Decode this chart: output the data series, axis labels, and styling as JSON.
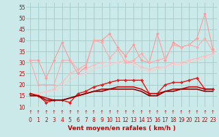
{
  "xlabel": "Vent moyen/en rafales ( km/h )",
  "xlim": [
    -0.5,
    23.5
  ],
  "ylim": [
    10,
    57
  ],
  "yticks": [
    10,
    15,
    20,
    25,
    30,
    35,
    40,
    45,
    50,
    55
  ],
  "xticks": [
    0,
    1,
    2,
    3,
    4,
    5,
    6,
    7,
    8,
    9,
    10,
    11,
    12,
    13,
    14,
    15,
    16,
    17,
    18,
    19,
    20,
    21,
    22,
    23
  ],
  "background_color": "#cbe9e9",
  "grid_color": "#a0c8c8",
  "series": [
    {
      "x": [
        0,
        1,
        2,
        3,
        4,
        5,
        6,
        7,
        8,
        9,
        10,
        11,
        12,
        13,
        14,
        15,
        16,
        17,
        18,
        19,
        20,
        21,
        22,
        23
      ],
      "y": [
        31,
        31,
        23,
        31,
        39,
        31,
        25,
        28,
        40,
        40,
        43,
        37,
        33,
        38,
        31,
        30,
        43,
        31,
        39,
        37,
        38,
        41,
        52,
        36
      ],
      "color": "#ff9999",
      "marker": "D",
      "markersize": 2,
      "linewidth": 0.8,
      "linestyle": "-",
      "zorder": 3
    },
    {
      "x": [
        0,
        1,
        2,
        3,
        4,
        5,
        6,
        7,
        8,
        9,
        10,
        11,
        12,
        13,
        14,
        15,
        16,
        17,
        18,
        19,
        20,
        21,
        22,
        23
      ],
      "y": [
        31,
        20,
        20,
        20,
        31,
        31,
        27,
        29,
        40,
        39,
        32,
        36,
        30,
        31,
        34,
        30,
        31,
        32,
        38,
        37,
        38,
        37,
        41,
        35
      ],
      "color": "#ffaaaa",
      "marker": "D",
      "markersize": 2,
      "linewidth": 0.8,
      "linestyle": "-",
      "zorder": 3
    },
    {
      "x": [
        0,
        1,
        2,
        3,
        4,
        5,
        6,
        7,
        8,
        9,
        10,
        11,
        12,
        13,
        14,
        15,
        16,
        17,
        18,
        19,
        20,
        21,
        22,
        23
      ],
      "y": [
        16,
        16,
        17,
        18,
        21,
        25,
        27,
        27,
        29,
        30,
        30,
        30,
        31,
        30,
        28,
        27,
        28,
        28,
        30,
        30,
        31,
        32,
        33,
        34
      ],
      "color": "#ffbbbb",
      "marker": "D",
      "markersize": 2,
      "linewidth": 0.8,
      "linestyle": "-",
      "zorder": 2
    },
    {
      "x": [
        0,
        1,
        2,
        3,
        4,
        5,
        6,
        7,
        8,
        9,
        10,
        11,
        12,
        13,
        14,
        15,
        16,
        17,
        18,
        19,
        20,
        21,
        22,
        23
      ],
      "y": [
        16,
        16,
        17,
        17,
        19,
        22,
        24,
        25,
        27,
        28,
        29,
        30,
        30,
        29,
        27,
        26,
        27,
        28,
        29,
        29,
        30,
        31,
        32,
        33
      ],
      "color": "#ffcccc",
      "marker": null,
      "markersize": 0,
      "linewidth": 0.8,
      "linestyle": "-",
      "zorder": 2
    },
    {
      "x": [
        0,
        1,
        2,
        3,
        4,
        5,
        6,
        7,
        8,
        9,
        10,
        11,
        12,
        13,
        14,
        15,
        16,
        17,
        18,
        19,
        20,
        21,
        22,
        23
      ],
      "y": [
        16,
        15,
        12,
        13,
        13,
        12,
        16,
        17,
        19,
        20,
        21,
        22,
        22,
        22,
        22,
        16,
        16,
        20,
        21,
        21,
        22,
        23,
        18,
        18
      ],
      "color": "#ff4444",
      "marker": "D",
      "markersize": 2,
      "linewidth": 0.9,
      "linestyle": "-",
      "zorder": 4
    },
    {
      "x": [
        0,
        1,
        2,
        3,
        4,
        5,
        6,
        7,
        8,
        9,
        10,
        11,
        12,
        13,
        14,
        15,
        16,
        17,
        18,
        19,
        20,
        21,
        22,
        23
      ],
      "y": [
        16,
        15,
        12,
        13,
        13,
        12,
        16,
        17,
        19,
        20,
        21,
        22,
        22,
        22,
        22,
        16,
        16,
        20,
        21,
        21,
        22,
        23,
        18,
        18
      ],
      "color": "#dd2222",
      "marker": "D",
      "markersize": 2,
      "linewidth": 0.9,
      "linestyle": "-",
      "zorder": 4
    },
    {
      "x": [
        0,
        1,
        2,
        3,
        4,
        5,
        6,
        7,
        8,
        9,
        10,
        11,
        12,
        13,
        14,
        15,
        16,
        17,
        18,
        19,
        20,
        21,
        22,
        23
      ],
      "y": [
        16,
        15,
        14,
        13,
        13,
        14,
        15,
        16,
        17,
        18,
        18,
        19,
        19,
        19,
        18,
        16,
        16,
        17,
        18,
        18,
        19,
        19,
        18,
        18
      ],
      "color": "#cc0000",
      "marker": null,
      "markersize": 0,
      "linewidth": 1.2,
      "linestyle": "-",
      "zorder": 5
    },
    {
      "x": [
        0,
        1,
        2,
        3,
        4,
        5,
        6,
        7,
        8,
        9,
        10,
        11,
        12,
        13,
        14,
        15,
        16,
        17,
        18,
        19,
        20,
        21,
        22,
        23
      ],
      "y": [
        15,
        15,
        13,
        13,
        13,
        14,
        15,
        16,
        17,
        17,
        18,
        18,
        18,
        18,
        17,
        15,
        15,
        17,
        17,
        18,
        18,
        18,
        17,
        17
      ],
      "color": "#880000",
      "marker": null,
      "markersize": 0,
      "linewidth": 1.2,
      "linestyle": "-",
      "zorder": 5
    }
  ],
  "xlabel_fontsize": 6.5,
  "tick_fontsize": 5.5,
  "ytick_color": "#cc0000",
  "xtick_color": "#cc0000",
  "xlabel_color": "#cc0000",
  "xlabel_bold": true
}
